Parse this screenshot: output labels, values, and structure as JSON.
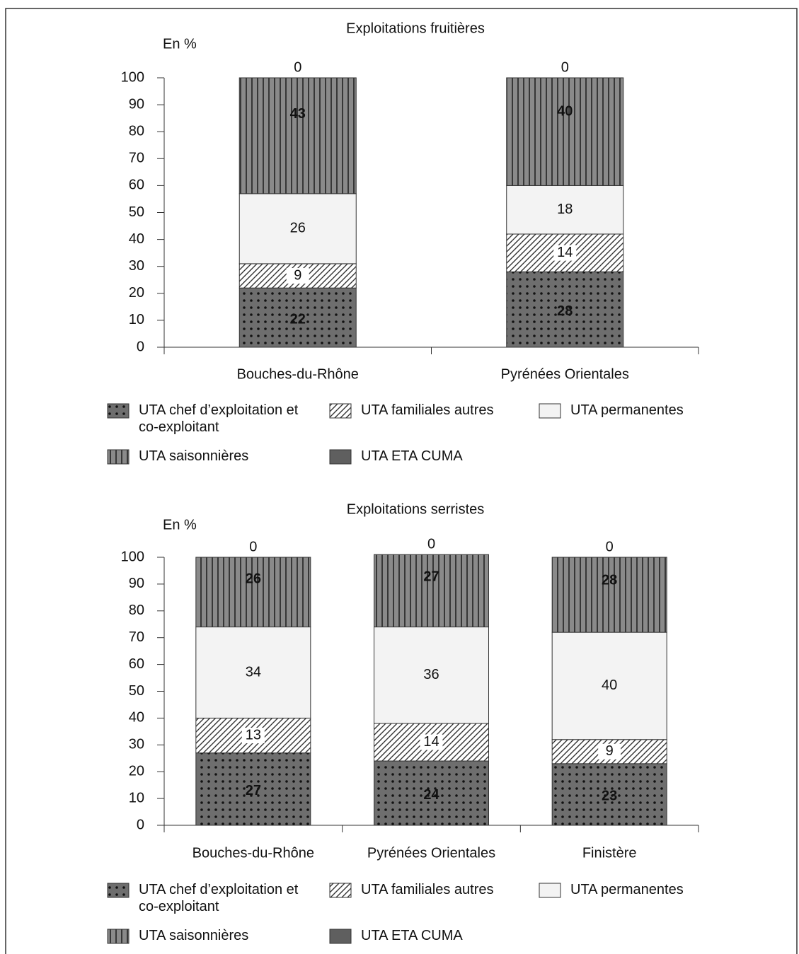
{
  "chart_data": [
    {
      "type": "bar",
      "stacked": true,
      "title": "Exploitations fruitières",
      "y_label": "En %",
      "categories": [
        "Bouches-du-Rhône",
        "Pyrénées Orientales"
      ],
      "ylim": [
        0,
        100
      ],
      "yticks": [
        0,
        10,
        20,
        30,
        40,
        50,
        60,
        70,
        80,
        90,
        100
      ],
      "series": [
        {
          "name": "UTA chef d’exploitation et co-exploitant",
          "color": "#6e6e6e",
          "pattern": "dots",
          "values": [
            22,
            28
          ]
        },
        {
          "name": "UTA familiales autres",
          "color": "#ffffff",
          "pattern": "hatch",
          "values": [
            9,
            14
          ]
        },
        {
          "name": "UTA permanentes",
          "color": "#f3f3f3",
          "pattern": "solid",
          "values": [
            26,
            18
          ]
        },
        {
          "name": "UTA saisonnières",
          "color": "#8a8a8a",
          "pattern": "vstripes",
          "values": [
            43,
            40
          ]
        },
        {
          "name": "UTA ETA CUMA",
          "color": "#5f5f5f",
          "pattern": "solid",
          "values": [
            0,
            0
          ]
        }
      ]
    },
    {
      "type": "bar",
      "stacked": true,
      "title": "Exploitations serristes",
      "y_label": "En %",
      "categories": [
        "Bouches-du-Rhône",
        "Pyrénées Orientales",
        "Finistère"
      ],
      "ylim": [
        0,
        100
      ],
      "yticks": [
        0,
        10,
        20,
        30,
        40,
        50,
        60,
        70,
        80,
        90,
        100
      ],
      "series": [
        {
          "name": "UTA chef d’exploitation et co-exploitant",
          "color": "#6e6e6e",
          "pattern": "dots",
          "values": [
            27,
            24,
            23
          ]
        },
        {
          "name": "UTA familiales autres",
          "color": "#ffffff",
          "pattern": "hatch",
          "values": [
            13,
            14,
            9
          ]
        },
        {
          "name": "UTA permanentes",
          "color": "#f3f3f3",
          "pattern": "solid",
          "values": [
            34,
            36,
            40
          ]
        },
        {
          "name": "UTA saisonnières",
          "color": "#8a8a8a",
          "pattern": "vstripes",
          "values": [
            26,
            27,
            28
          ]
        },
        {
          "name": "UTA ETA CUMA",
          "color": "#5f5f5f",
          "pattern": "solid",
          "values": [
            0,
            0,
            0
          ]
        }
      ]
    }
  ]
}
